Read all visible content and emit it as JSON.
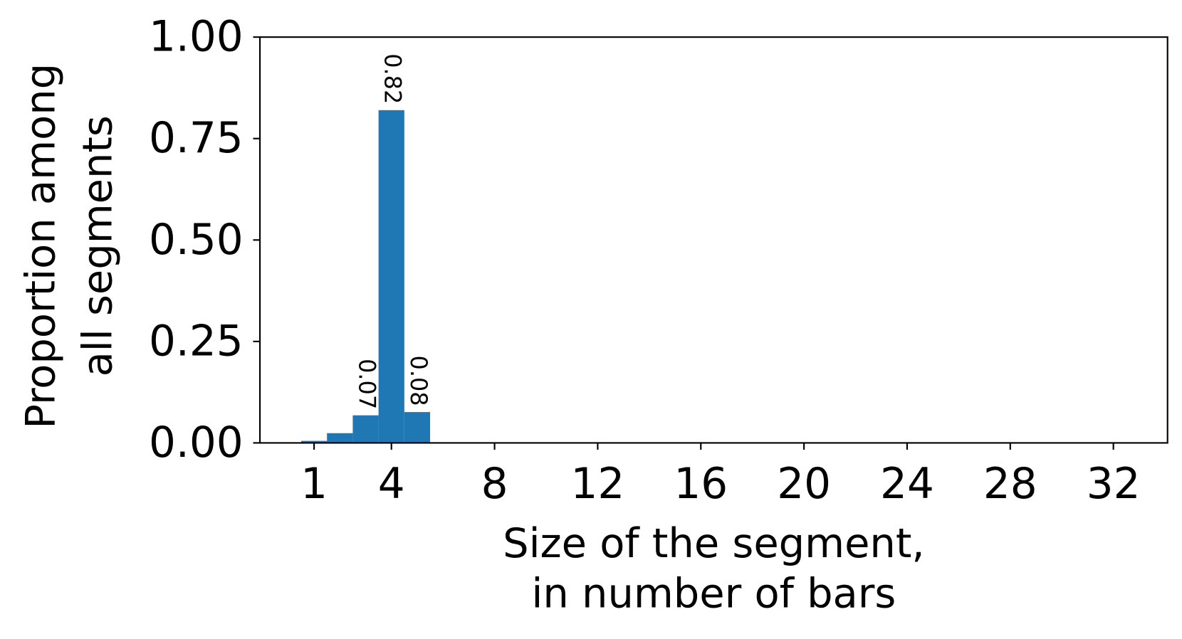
{
  "chart_data": {
    "type": "bar",
    "xlabel": [
      "Size of the segment,",
      "in number of bars"
    ],
    "ylabel": [
      "Proportion among",
      "all segments"
    ],
    "x": [
      1,
      2,
      3,
      4,
      5
    ],
    "values": [
      0.005,
      0.024,
      0.068,
      0.82,
      0.076
    ],
    "value_labels": [
      null,
      null,
      "0.07",
      "0.82",
      "0.08"
    ],
    "color": "#1f77b4",
    "xlim": [
      -1.1,
      34.1
    ],
    "xticks": [
      1,
      4,
      8,
      12,
      16,
      20,
      24,
      28,
      32
    ],
    "ylim": [
      0,
      1
    ],
    "yticks": [
      {
        "value": 0,
        "label": "0.00"
      },
      {
        "value": 0.25,
        "label": "0.25"
      },
      {
        "value": 0.5,
        "label": "0.50"
      },
      {
        "value": 0.75,
        "label": "0.75"
      },
      {
        "value": 1,
        "label": "1.00"
      }
    ]
  }
}
